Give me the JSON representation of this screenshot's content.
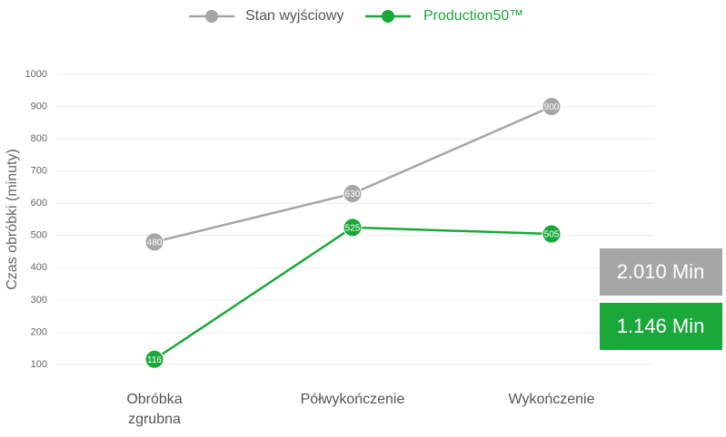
{
  "chart_data": {
    "type": "line",
    "y_label": "Czas obróbki (minuty)",
    "categories": [
      "Obróbka zgrubna",
      "Półwykończenie",
      "Wykończenie"
    ],
    "series": [
      {
        "name": "Stan wyjściowy",
        "color": "#a6a6a6",
        "values": [
          480,
          630,
          900
        ]
      },
      {
        "name": "Production50™",
        "color": "#1aa83a",
        "values": [
          116,
          525,
          505
        ]
      }
    ],
    "annotations": [
      "2.010 Min",
      "1.146 Min"
    ],
    "ylim": [
      100,
      1000
    ],
    "yticks": [
      100,
      200,
      300,
      400,
      500,
      600,
      700,
      800,
      900,
      1000
    ],
    "grid": true,
    "legend": "top"
  }
}
